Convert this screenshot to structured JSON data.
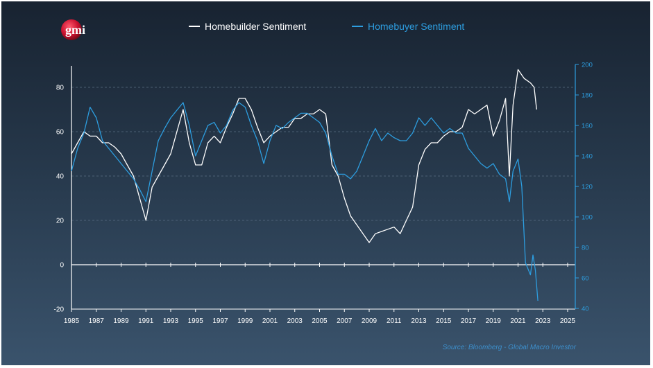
{
  "legend": {
    "builder_label": "Homebuilder Sentiment",
    "buyer_label": "Homebuyer Sentiment"
  },
  "logo": {
    "text": "gmi"
  },
  "source": "Source: Bloomberg - Global Macro Investor",
  "colors": {
    "builder": "#ffffff",
    "buyer": "#2d9ee0",
    "accent_logo": "#c8102e"
  },
  "chart_data": {
    "type": "line",
    "title": "",
    "xlabel": "",
    "ylabel": "",
    "xlim": [
      1985,
      2025
    ],
    "ylim_left": [
      -20,
      90
    ],
    "ylim_right": [
      40,
      200
    ],
    "x_ticks": [
      "1985",
      "1987",
      "1989",
      "1991",
      "1993",
      "1995",
      "1997",
      "1999",
      "2001",
      "2003",
      "2005",
      "2007",
      "2009",
      "2011",
      "2013",
      "2015",
      "2017",
      "2019",
      "2021",
      "2023",
      "2025"
    ],
    "y_ticks_left": [
      "-20",
      "0",
      "20",
      "40",
      "60",
      "80"
    ],
    "y_ticks_right": [
      "40",
      "60",
      "80",
      "100",
      "120",
      "140",
      "160",
      "180",
      "200"
    ],
    "series": [
      {
        "name": "Homebuilder Sentiment",
        "axis": "left",
        "color": "#ffffff",
        "x": [
          1985.0,
          1985.5,
          1986.0,
          1986.5,
          1987.0,
          1987.5,
          1988.0,
          1988.5,
          1989.0,
          1989.5,
          1990.0,
          1990.5,
          1991.0,
          1991.5,
          1992.0,
          1992.5,
          1993.0,
          1993.5,
          1994.0,
          1994.5,
          1995.0,
          1995.5,
          1996.0,
          1996.5,
          1997.0,
          1997.5,
          1998.0,
          1998.5,
          1999.0,
          1999.5,
          2000.0,
          2000.5,
          2001.0,
          2001.5,
          2002.0,
          2002.5,
          2003.0,
          2003.5,
          2004.0,
          2004.5,
          2005.0,
          2005.5,
          2006.0,
          2006.5,
          2007.0,
          2007.5,
          2008.0,
          2008.5,
          2009.0,
          2009.5,
          2010.0,
          2010.5,
          2011.0,
          2011.5,
          2012.0,
          2012.5,
          2013.0,
          2013.5,
          2014.0,
          2014.5,
          2015.0,
          2015.5,
          2016.0,
          2016.5,
          2017.0,
          2017.5,
          2018.0,
          2018.5,
          2019.0,
          2019.5,
          2020.0,
          2020.3,
          2020.6,
          2021.0,
          2021.5,
          2022.0,
          2022.3,
          2022.5
        ],
        "values": [
          50,
          55,
          60,
          58,
          58,
          55,
          55,
          53,
          50,
          45,
          40,
          30,
          20,
          35,
          40,
          45,
          50,
          60,
          70,
          55,
          45,
          45,
          55,
          58,
          55,
          62,
          68,
          75,
          75,
          70,
          62,
          55,
          58,
          60,
          62,
          62,
          66,
          66,
          68,
          68,
          70,
          68,
          45,
          40,
          30,
          22,
          18,
          14,
          10,
          14,
          15,
          16,
          17,
          14,
          20,
          26,
          45,
          52,
          55,
          55,
          58,
          60,
          60,
          62,
          70,
          68,
          70,
          72,
          58,
          65,
          75,
          40,
          72,
          88,
          84,
          82,
          80,
          70
        ]
      },
      {
        "name": "Homebuyer Sentiment",
        "axis": "right",
        "color": "#2d9ee0",
        "x": [
          1985.0,
          1985.5,
          1986.0,
          1986.5,
          1987.0,
          1987.5,
          1988.0,
          1988.5,
          1989.0,
          1989.5,
          1990.0,
          1990.5,
          1991.0,
          1991.5,
          1992.0,
          1992.5,
          1993.0,
          1993.5,
          1994.0,
          1994.5,
          1995.0,
          1995.5,
          1996.0,
          1996.5,
          1997.0,
          1997.5,
          1998.0,
          1998.5,
          1999.0,
          1999.5,
          2000.0,
          2000.5,
          2001.0,
          2001.5,
          2002.0,
          2002.5,
          2003.0,
          2003.5,
          2004.0,
          2004.5,
          2005.0,
          2005.5,
          2006.0,
          2006.5,
          2007.0,
          2007.5,
          2008.0,
          2008.5,
          2009.0,
          2009.5,
          2010.0,
          2010.5,
          2011.0,
          2011.5,
          2012.0,
          2012.5,
          2013.0,
          2013.5,
          2014.0,
          2014.5,
          2015.0,
          2015.5,
          2016.0,
          2016.5,
          2017.0,
          2017.5,
          2018.0,
          2018.5,
          2019.0,
          2019.5,
          2020.0,
          2020.3,
          2020.6,
          2021.0,
          2021.3,
          2021.6,
          2022.0,
          2022.2,
          2022.4,
          2022.6
        ],
        "values": [
          130,
          145,
          155,
          172,
          165,
          150,
          145,
          140,
          135,
          130,
          125,
          118,
          110,
          130,
          150,
          158,
          165,
          170,
          175,
          160,
          140,
          150,
          160,
          162,
          155,
          160,
          170,
          175,
          172,
          160,
          150,
          135,
          150,
          160,
          158,
          162,
          165,
          168,
          168,
          165,
          162,
          155,
          140,
          128,
          128,
          125,
          130,
          140,
          150,
          158,
          150,
          155,
          152,
          150,
          150,
          155,
          165,
          160,
          165,
          160,
          155,
          158,
          155,
          155,
          145,
          140,
          135,
          132,
          135,
          128,
          125,
          110,
          130,
          138,
          120,
          70,
          62,
          75,
          65,
          45
        ]
      }
    ]
  }
}
